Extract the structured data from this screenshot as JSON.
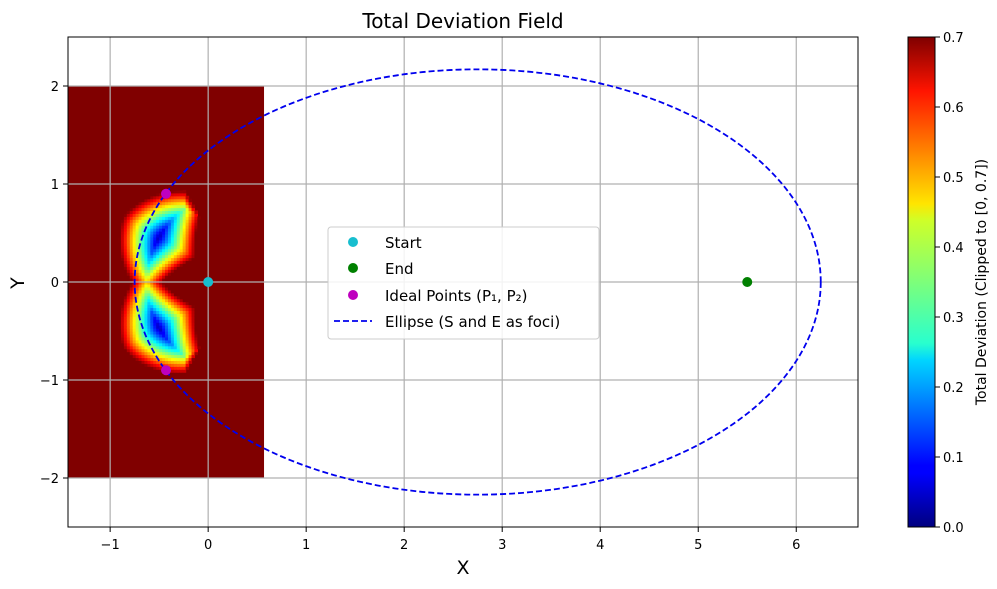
{
  "chart_data": {
    "type": "heatmap",
    "title": "Total Deviation Field",
    "xlabel": "X",
    "ylabel": "Y",
    "xlim": [
      -1.43,
      6.63
    ],
    "ylim": [
      -2.5,
      2.5
    ],
    "xticks": [
      -1,
      0,
      1,
      2,
      3,
      4,
      5,
      6
    ],
    "yticks": [
      -2,
      -1,
      0,
      1,
      2
    ],
    "xtick_labels": [
      "−1",
      "0",
      "1",
      "2",
      "3",
      "4",
      "5",
      "6"
    ],
    "ytick_labels": [
      "−2",
      "−1",
      "0",
      "1",
      "2"
    ],
    "grid": true,
    "heatmap": {
      "x_range": [
        -1.43,
        0.57
      ],
      "y_range": [
        -2,
        2
      ],
      "background_value": 0.7,
      "arc_center": [
        0.3,
        0
      ],
      "arc_inner_radius": 0.5,
      "arc_outer_radius": 1.35,
      "arc_half_angle_deg": 60
    },
    "colorbar": {
      "label": "Total Deviation (Clipped to [0, 0.7])",
      "min": 0.0,
      "max": 0.7,
      "ticks": [
        0.0,
        0.1,
        0.2,
        0.3,
        0.4,
        0.5,
        0.6,
        0.7
      ],
      "tick_labels": [
        "0.0",
        "0.1",
        "0.2",
        "0.3",
        "0.4",
        "0.5",
        "0.6",
        "0.7"
      ]
    },
    "points": {
      "start": {
        "name": "Start",
        "x": 0,
        "y": 0,
        "color": "#17becf"
      },
      "end": {
        "name": "End",
        "x": 5.5,
        "y": 0,
        "color": "#008000"
      },
      "ideal": {
        "name": "Ideal Points (P₁, P₂)",
        "x": [
          -0.43,
          -0.43
        ],
        "y": [
          0.9,
          -0.9
        ],
        "color": "#bf00bf"
      }
    },
    "ellipse": {
      "name": "Ellipse (S and E as foci)",
      "center_x": 2.75,
      "center_y": 0,
      "semi_major": 3.5,
      "semi_minor": 2.17,
      "color": "#0000ee",
      "dashed": true
    },
    "legend": {
      "position": "center",
      "labels": [
        "Start",
        "End",
        "Ideal Points (P₁, P₂)",
        "Ellipse (S and E as foci)"
      ]
    }
  }
}
